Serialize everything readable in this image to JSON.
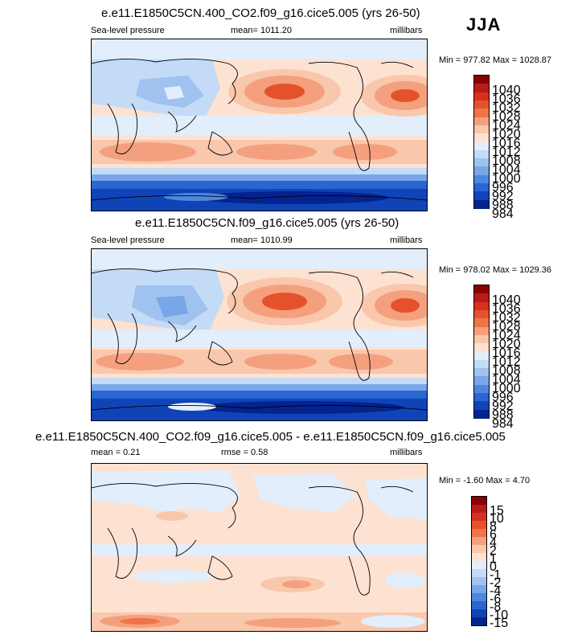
{
  "season": "JJA",
  "panels": [
    {
      "id": "p1",
      "title": "e.e11.E1850C5CN.400_CO2.f09_g16.cice5.005 (yrs 26-50)",
      "variable": "Sea-level pressure",
      "stat": "mean= 1011.20",
      "units": "millibars",
      "minmax": "Min = 977.82 Max = 1028.87",
      "colorbar_labels": [
        "1040",
        "1036",
        "1032",
        "1028",
        "1024",
        "1020",
        "1016",
        "1012",
        "1008",
        "1004",
        "1000",
        "996",
        "992",
        "988",
        "984"
      ]
    },
    {
      "id": "p2",
      "title": "e.e11.E1850C5CN.f09_g16.cice5.005 (yrs 26-50)",
      "variable": "Sea-level pressure",
      "stat": "mean= 1010.99",
      "units": "millibars",
      "minmax": "Min = 978.02 Max = 1029.36",
      "colorbar_labels": [
        "1040",
        "1036",
        "1032",
        "1028",
        "1024",
        "1020",
        "1016",
        "1012",
        "1008",
        "1004",
        "1000",
        "996",
        "992",
        "988",
        "984"
      ]
    },
    {
      "id": "p3",
      "title": "e.e11.E1850C5CN.400_CO2.f09_g16.cice5.005 - e.e11.E1850C5CN.f09_g16.cice5.005",
      "stat": "mean =   0.21",
      "rmse": "rmse =   0.58",
      "units": "millibars",
      "minmax": "Min =  -1.60 Max =   4.70",
      "colorbar_labels": [
        "15",
        "10",
        "8",
        "6",
        "4",
        "2",
        "1",
        "0",
        "-1",
        "-2",
        "-4",
        "-6",
        "-8",
        "-10",
        "-15"
      ]
    }
  ],
  "colors": {
    "abs_scale": [
      "#8b0000",
      "#b71c1c",
      "#d7301f",
      "#e4522c",
      "#ef7447",
      "#f4a07e",
      "#f9c7ac",
      "#fde2d2",
      "#e2eefb",
      "#c3dbf6",
      "#9fc2ef",
      "#78a6e8",
      "#4f87df",
      "#2a66d2",
      "#0f44b8",
      "#05238f"
    ],
    "diff_scale": [
      "#8b0000",
      "#b71c1c",
      "#d7301f",
      "#e4522c",
      "#ef7447",
      "#f4a07e",
      "#f9c7ac",
      "#fde2d2",
      "#e2eefb",
      "#c3dbf6",
      "#9fc2ef",
      "#78a6e8",
      "#4f87df",
      "#2a66d2",
      "#0f44b8",
      "#05238f"
    ]
  }
}
